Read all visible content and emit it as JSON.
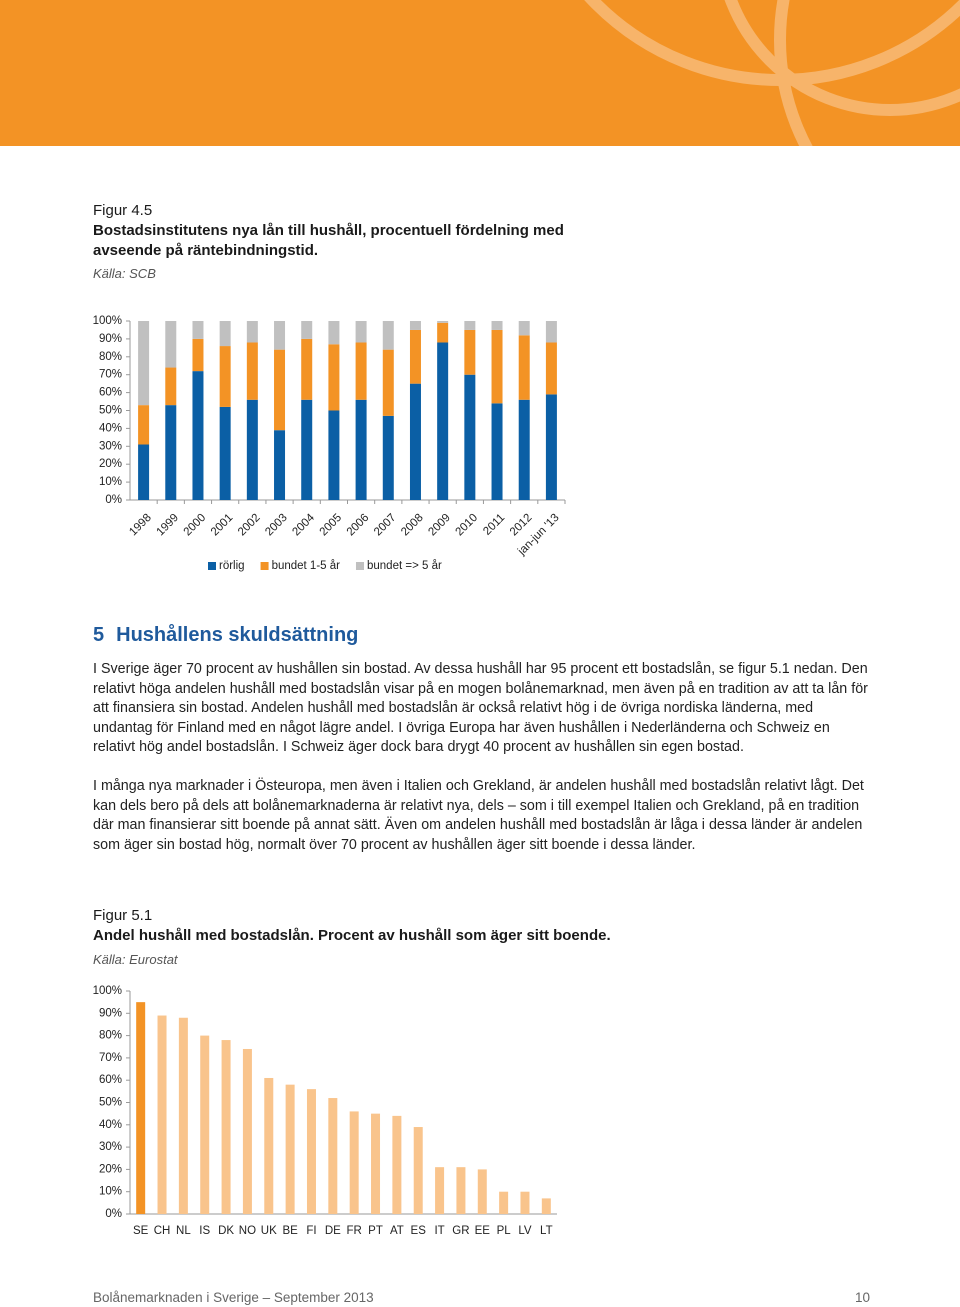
{
  "figure_1": {
    "label": "Figur 4.5",
    "title": "Bostadsinstitutens nya lån till hushåll, procentuell fördelning med avseende på räntebindningstid.",
    "source": "Källa: SCB"
  },
  "section": {
    "number": "5",
    "title": "Hushållens skuldsättning"
  },
  "paragraphs": [
    "I Sverige äger 70 procent av hushållen sin bostad. Av dessa hushåll har 95 procent ett bostadslån, se figur 5.1 nedan. Den relativt höga andelen hushåll med bostadslån visar på en mogen bolånemarknad, men även på en tradition av att ta lån för att finansiera sin bostad. Andelen hushåll med bostadslån är också relativt hög i de övriga nordiska länderna, med undantag för Finland med en något lägre andel. I övriga Europa har även hushållen i Nederländerna och Schweiz en relativt hög andel bostadslån. I Schweiz äger dock bara drygt 40 procent av hushållen sin egen bostad.",
    "I många nya marknader i Östeuropa, men även i Italien och Grekland, är andelen hushåll med bostadslån relativt lågt. Det kan dels bero på dels att bolånemarknaderna är relativt nya, dels – som i till exempel Italien och Grekland, på en tradition där man finansierar sitt boende på annat sätt. Även om andelen hushåll med bostadslån är låga i dessa länder är andelen som äger sin bostad hög, normalt över 70 procent av hushållen äger sitt boende i dessa länder."
  ],
  "figure_2": {
    "label": "Figur 5.1",
    "title": "Andel hushåll med bostadslån. Procent av hushåll som äger sitt boende.",
    "source": "Källa: Eurostat"
  },
  "footer": {
    "text": "Bolånemarknaden i Sverige – September 2013",
    "page": "10"
  },
  "chart_data": [
    {
      "type": "stacked_bar",
      "categories": [
        "1998",
        "1999",
        "2000",
        "2001",
        "2002",
        "2003",
        "2004",
        "2005",
        "2006",
        "2007",
        "2008",
        "2009",
        "2010",
        "2011",
        "2012",
        "jan-jun '13"
      ],
      "series": [
        {
          "name": "rörlig",
          "color": "#0b5fa5",
          "values": [
            31,
            53,
            72,
            52,
            56,
            39,
            56,
            50,
            56,
            47,
            65,
            88,
            70,
            54,
            56,
            59
          ]
        },
        {
          "name": "bundet 1-5 år",
          "color": "#f39325",
          "values": [
            22,
            21,
            18,
            34,
            32,
            45,
            34,
            37,
            32,
            37,
            30,
            11,
            25,
            41,
            36,
            29
          ]
        },
        {
          "name": "bundet => 5 år",
          "color": "#c0c0c0",
          "values": [
            47,
            26,
            10,
            14,
            12,
            16,
            10,
            13,
            12,
            16,
            5,
            1,
            5,
            5,
            8,
            12
          ]
        }
      ],
      "ylim": [
        0,
        100
      ],
      "yticks": [
        {
          "value": 0,
          "label": "0%"
        },
        {
          "value": 10,
          "label": "10%"
        },
        {
          "value": 20,
          "label": "20%"
        },
        {
          "value": 30,
          "label": "30%"
        },
        {
          "value": 40,
          "label": "40%"
        },
        {
          "value": 50,
          "label": "50%"
        },
        {
          "value": 60,
          "label": "60%"
        },
        {
          "value": 70,
          "label": "70%"
        },
        {
          "value": 80,
          "label": "80%"
        },
        {
          "value": 90,
          "label": "90%"
        },
        {
          "value": 100,
          "label": "100%"
        }
      ],
      "legend": "bottom"
    },
    {
      "type": "bar",
      "categories": [
        "SE",
        "CH",
        "NL",
        "IS",
        "DK",
        "NO",
        "UK",
        "BE",
        "FI",
        "DE",
        "FR",
        "PT",
        "AT",
        "ES",
        "IT",
        "GR",
        "EE",
        "PL",
        "LV",
        "LT"
      ],
      "values": [
        95,
        89,
        88,
        80,
        78,
        74,
        61,
        58,
        56,
        52,
        46,
        45,
        44,
        39,
        21,
        21,
        20,
        10,
        10,
        7
      ],
      "colors": [
        "#f39325",
        "#f9c48c",
        "#f9c48c",
        "#f9c48c",
        "#f9c48c",
        "#f9c48c",
        "#f9c48c",
        "#f9c48c",
        "#f9c48c",
        "#f9c48c",
        "#f9c48c",
        "#f9c48c",
        "#f9c48c",
        "#f9c48c",
        "#f9c48c",
        "#f9c48c",
        "#f9c48c",
        "#f9c48c",
        "#f9c48c",
        "#f9c48c"
      ],
      "ylim": [
        0,
        100
      ],
      "yticks": [
        {
          "value": 0,
          "label": "0%"
        },
        {
          "value": 10,
          "label": "10%"
        },
        {
          "value": 20,
          "label": "20%"
        },
        {
          "value": 30,
          "label": "30%"
        },
        {
          "value": 40,
          "label": "40%"
        },
        {
          "value": 50,
          "label": "50%"
        },
        {
          "value": 60,
          "label": "60%"
        },
        {
          "value": 70,
          "label": "70%"
        },
        {
          "value": 80,
          "label": "80%"
        },
        {
          "value": 90,
          "label": "90%"
        },
        {
          "value": 100,
          "label": "100%"
        }
      ]
    }
  ]
}
